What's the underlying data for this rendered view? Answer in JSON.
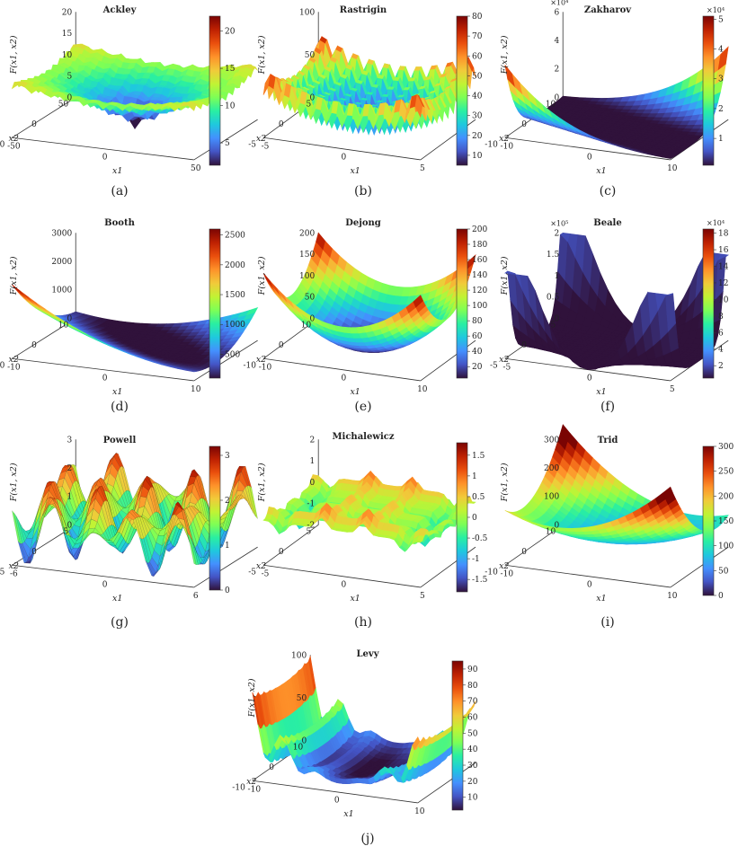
{
  "chart_data": [
    {
      "type": "surface3d",
      "subfigure": "(a)",
      "title": "Ackley",
      "zlabel": "F(x1, x2)",
      "xlabel": "x1",
      "ylabel": "x2",
      "zticks": [
        "0",
        "5",
        "10",
        "15",
        "20"
      ],
      "xticks": [
        "-50",
        "0",
        "50"
      ],
      "yticks": [
        "-50",
        "0",
        "50"
      ],
      "xlim": [
        -50,
        50
      ],
      "ylim": [
        -50,
        50
      ],
      "zlim": [
        0,
        22
      ],
      "colorbar_ticks": [
        "5",
        "10",
        "15",
        "20"
      ],
      "colorbar_range": [
        2,
        22
      ],
      "colorbar_multiplier": ""
    },
    {
      "type": "surface3d",
      "subfigure": "(b)",
      "title": "Rastrigin",
      "zlabel": "F(x1, x2)",
      "xlabel": "x1",
      "ylabel": "x2",
      "zticks": [
        "0",
        "50",
        "100"
      ],
      "xticks": [
        "-5",
        "0",
        "5"
      ],
      "yticks": [
        "-5",
        "0",
        "5"
      ],
      "xlim": [
        -5,
        5
      ],
      "ylim": [
        -5,
        5
      ],
      "zlim": [
        0,
        100
      ],
      "colorbar_ticks": [
        "10",
        "20",
        "30",
        "40",
        "50",
        "60",
        "70",
        "80"
      ],
      "colorbar_range": [
        5,
        80
      ],
      "colorbar_multiplier": ""
    },
    {
      "type": "surface3d",
      "subfigure": "(c)",
      "title": "Zakharov",
      "zlabel": "F(x1, x2)",
      "xlabel": "x1",
      "ylabel": "x2",
      "zticks": [
        "0",
        "2",
        "4",
        "6"
      ],
      "zmultiplier": "×10⁴",
      "xticks": [
        "-10",
        "0",
        "10"
      ],
      "yticks": [
        "-10",
        "0",
        "10"
      ],
      "xlim": [
        -10,
        10
      ],
      "ylim": [
        -10,
        10
      ],
      "zlim": [
        0,
        6
      ],
      "colorbar_ticks": [
        "1",
        "2",
        "3",
        "4",
        "5"
      ],
      "colorbar_range": [
        0.1,
        5.1
      ],
      "colorbar_multiplier": "×10⁴"
    },
    {
      "type": "surface3d",
      "subfigure": "(d)",
      "title": "Booth",
      "zlabel": "F(x1, x2)",
      "xlabel": "x1",
      "ylabel": "x2",
      "zticks": [
        "0",
        "1000",
        "2000",
        "3000"
      ],
      "xticks": [
        "-10",
        "0",
        "10"
      ],
      "yticks": [
        "-10",
        "0",
        "10"
      ],
      "xlim": [
        -10,
        10
      ],
      "ylim": [
        -10,
        10
      ],
      "zlim": [
        0,
        3000
      ],
      "colorbar_ticks": [
        "500",
        "1000",
        "1500",
        "2000",
        "2500"
      ],
      "colorbar_range": [
        100,
        2600
      ],
      "colorbar_multiplier": ""
    },
    {
      "type": "surface3d",
      "subfigure": "(e)",
      "title": "Dejong",
      "zlabel": "F(x1, x2)",
      "xlabel": "x1",
      "ylabel": "x2",
      "zticks": [
        "0",
        "50",
        "100",
        "150",
        "200"
      ],
      "xticks": [
        "-10",
        "0",
        "10"
      ],
      "yticks": [
        "-10",
        "0",
        "10"
      ],
      "xlim": [
        -10,
        10
      ],
      "ylim": [
        -10,
        10
      ],
      "zlim": [
        0,
        200
      ],
      "colorbar_ticks": [
        "20",
        "40",
        "60",
        "80",
        "100",
        "120",
        "140",
        "160",
        "180",
        "200"
      ],
      "colorbar_range": [
        5,
        200
      ],
      "colorbar_multiplier": ""
    },
    {
      "type": "surface3d",
      "subfigure": "(f)",
      "title": "Beale",
      "zlabel": "F(x1, x2)",
      "xlabel": "x1",
      "ylabel": "x2",
      "zticks": [
        "0",
        "0.5",
        "1",
        "1.5",
        "2"
      ],
      "zmultiplier": "×10⁵",
      "xticks": [
        "-5",
        "0",
        "5"
      ],
      "yticks": [
        "-5",
        "0",
        "5"
      ],
      "xlim": [
        -5,
        5
      ],
      "ylim": [
        -5,
        5
      ],
      "zlim": [
        0,
        2
      ],
      "colorbar_ticks": [
        "2",
        "4",
        "6",
        "8",
        "10",
        "12",
        "14",
        "16",
        "18"
      ],
      "colorbar_range": [
        0.5,
        18.5
      ],
      "colorbar_multiplier": "×10⁴"
    },
    {
      "type": "surface3d",
      "subfigure": "(g)",
      "title": "Powell",
      "zlabel": "F(x1, x2)",
      "xlabel": "x1",
      "ylabel": "x2",
      "zticks": [
        "0",
        "1",
        "2",
        "3"
      ],
      "xticks": [
        "-6",
        "0",
        "6"
      ],
      "yticks": [
        "-5",
        "0",
        "5"
      ],
      "xlim": [
        -6,
        6
      ],
      "ylim": [
        -5,
        5
      ],
      "zlim": [
        0,
        3.2
      ],
      "colorbar_ticks": [
        "0",
        "1",
        "2",
        "3"
      ],
      "colorbar_range": [
        0,
        3.2
      ],
      "colorbar_multiplier": ""
    },
    {
      "type": "surface3d",
      "subfigure": "(h)",
      "title": "Michalewicz",
      "zlabel": "F(x1, x2)",
      "xlabel": "x1",
      "ylabel": "x2",
      "zticks": [
        "-2",
        "-1",
        "0",
        "1",
        "2"
      ],
      "xticks": [
        "-5",
        "0",
        "5"
      ],
      "yticks": [
        "-5",
        "0",
        "5"
      ],
      "xlim": [
        -5,
        5
      ],
      "ylim": [
        -5,
        5
      ],
      "zlim": [
        -2,
        2
      ],
      "colorbar_ticks": [
        "-1.5",
        "-1",
        "-0.5",
        "0",
        "0.5",
        "1",
        "1.5"
      ],
      "colorbar_range": [
        -1.8,
        1.8
      ],
      "colorbar_multiplier": ""
    },
    {
      "type": "surface3d",
      "subfigure": "(i)",
      "title": "Trid",
      "zlabel": "F(x1, x2)",
      "xlabel": "x1",
      "ylabel": "x2",
      "zticks": [
        "0",
        "100",
        "200",
        "300"
      ],
      "xticks": [
        "-10",
        "0",
        "10"
      ],
      "yticks": [
        "-10",
        "0",
        "10"
      ],
      "xlim": [
        -10,
        10
      ],
      "ylim": [
        -10,
        10
      ],
      "zlim": [
        0,
        300
      ],
      "colorbar_ticks": [
        "0",
        "50",
        "100",
        "150",
        "200",
        "250",
        "300"
      ],
      "colorbar_range": [
        0,
        300
      ],
      "colorbar_multiplier": ""
    },
    {
      "type": "surface3d",
      "subfigure": "(j)",
      "title": "Levy",
      "zlabel": "F(x1, x2)",
      "xlabel": "x1",
      "ylabel": "x2",
      "zticks": [
        "0",
        "50",
        "100"
      ],
      "xticks": [
        "-10",
        "0",
        "10"
      ],
      "yticks": [
        "-10",
        "0",
        "10"
      ],
      "xlim": [
        -10,
        10
      ],
      "ylim": [
        -10,
        10
      ],
      "zlim": [
        0,
        100
      ],
      "colorbar_ticks": [
        "10",
        "20",
        "30",
        "40",
        "50",
        "60",
        "70",
        "80",
        "90"
      ],
      "colorbar_range": [
        2,
        95
      ],
      "colorbar_multiplier": ""
    }
  ],
  "colormap_stops": [
    "#30123b",
    "#4454c4",
    "#4490fe",
    "#1fc8de",
    "#29efa2",
    "#7dff56",
    "#c1f334",
    "#f1ca3a",
    "#fe922a",
    "#ea4f0d",
    "#be2102",
    "#7a0403"
  ]
}
